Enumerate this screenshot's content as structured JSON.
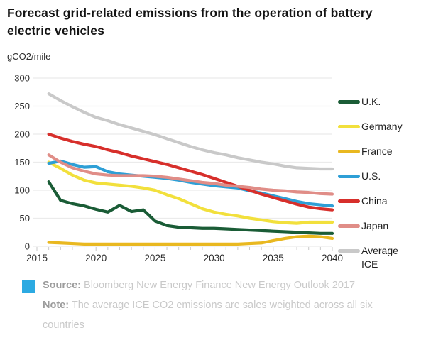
{
  "title": "Forecast grid-related emissions from the operation of battery electric vehicles",
  "chart": {
    "unit_label": "gCO2/mile",
    "y_ticks": [
      0,
      50,
      100,
      150,
      200,
      250,
      300
    ],
    "x_ticks": [
      2015,
      2020,
      2025,
      2030,
      2035,
      2040
    ],
    "gridline_color": "#ebebeb",
    "tick_color": "#c8c8c8",
    "axis_text_color": "#2b2b2b"
  },
  "chart_data": {
    "type": "line",
    "title": "Forecast grid-related emissions from the operation of battery electric vehicles",
    "xlabel": "",
    "ylabel": "gCO2/mile",
    "xlim": [
      2015,
      2040
    ],
    "ylim": [
      0,
      300
    ],
    "grid": "horizontal",
    "legend_position": "right",
    "x": [
      2016,
      2017,
      2018,
      2019,
      2020,
      2021,
      2022,
      2023,
      2024,
      2025,
      2026,
      2027,
      2028,
      2029,
      2030,
      2031,
      2032,
      2033,
      2034,
      2035,
      2036,
      2037,
      2038,
      2039,
      2040
    ],
    "series": [
      {
        "name": "U.K.",
        "color": "#1a5c36",
        "values": [
          115,
          82,
          76,
          72,
          66,
          61,
          73,
          62,
          65,
          45,
          37,
          34,
          33,
          32,
          32,
          31,
          30,
          29,
          28,
          27,
          26,
          25,
          24,
          23,
          23
        ]
      },
      {
        "name": "Germany",
        "color": "#f2e03c",
        "values": [
          150,
          139,
          127,
          118,
          113,
          111,
          109,
          107,
          104,
          100,
          92,
          85,
          76,
          67,
          61,
          57,
          54,
          50,
          47,
          44,
          42,
          41,
          43,
          43,
          43
        ]
      },
      {
        "name": "France",
        "color": "#e9b820",
        "values": [
          7,
          6,
          5,
          4,
          4,
          4,
          4,
          4,
          4,
          4,
          4,
          4,
          4,
          4,
          4,
          4,
          4,
          5,
          6,
          10,
          14,
          17,
          18,
          17,
          14
        ]
      },
      {
        "name": "U.S.",
        "color": "#2e9fd6",
        "values": [
          148,
          152,
          146,
          141,
          142,
          133,
          129,
          127,
          125,
          123,
          121,
          118,
          114,
          111,
          108,
          106,
          104,
          99,
          95,
          90,
          85,
          80,
          76,
          74,
          72
        ]
      },
      {
        "name": "China",
        "color": "#d72f2b",
        "values": [
          200,
          193,
          187,
          182,
          178,
          172,
          167,
          161,
          156,
          151,
          146,
          140,
          134,
          128,
          121,
          114,
          107,
          100,
          93,
          87,
          81,
          75,
          70,
          67,
          65
        ]
      },
      {
        "name": "Japan",
        "color": "#e08d87",
        "values": [
          163,
          150,
          140,
          134,
          129,
          127,
          126,
          126,
          126,
          125,
          123,
          120,
          117,
          114,
          112,
          109,
          107,
          105,
          102,
          100,
          99,
          97,
          96,
          94,
          93
        ]
      },
      {
        "name": "Average ICE",
        "color": "#c9c9c9",
        "values": [
          272,
          260,
          249,
          239,
          230,
          224,
          217,
          211,
          205,
          199,
          192,
          185,
          178,
          172,
          167,
          163,
          158,
          154,
          150,
          147,
          143,
          140,
          139,
          138,
          138
        ]
      }
    ]
  },
  "footer": {
    "source_label": "Source:",
    "source_text": "Bloomberg New Energy Finance New Energy Outlook 2017",
    "note_label": "Note:",
    "note_text": "The average ICE CO2 emissions are sales weighted across all six countries",
    "brand_color": "#2caae2"
  }
}
